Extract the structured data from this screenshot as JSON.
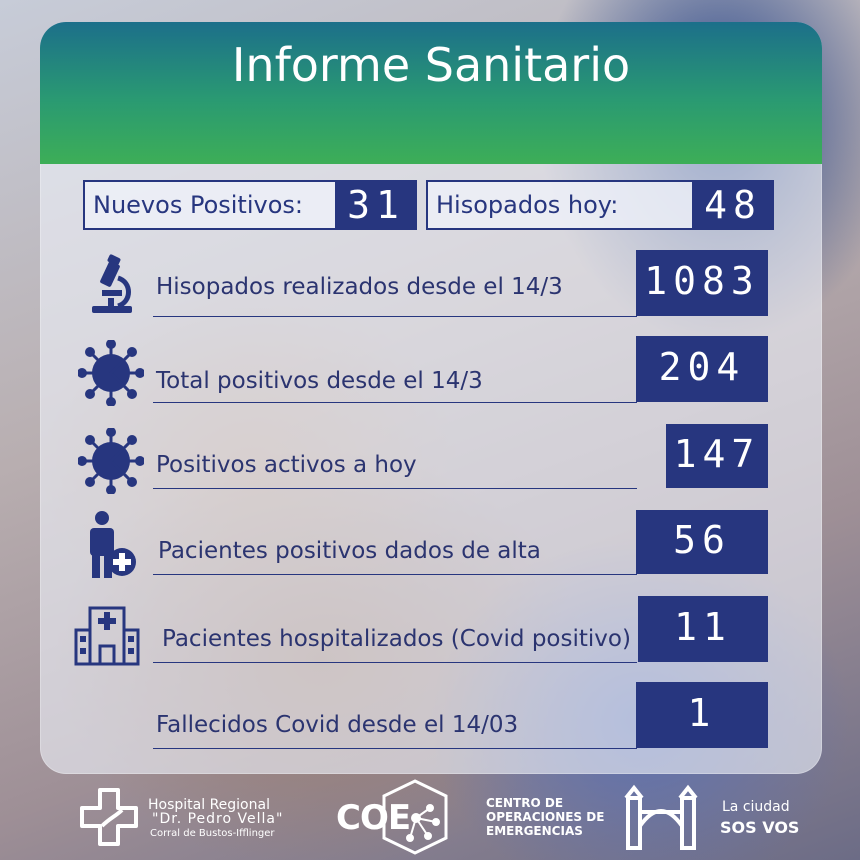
{
  "title": "Informe Sanitario",
  "summary": {
    "new_positives": {
      "label": "Nuevos Positivos:",
      "value": "31"
    },
    "swabs_today": {
      "label": "Hisopados hoy:",
      "value": "48"
    }
  },
  "stats": [
    {
      "icon": "microscope-icon",
      "label": "Hisopados realizados desde el 14/3",
      "value": "1083"
    },
    {
      "icon": "virus-icon",
      "label": "Total positivos desde el 14/3",
      "value": "204"
    },
    {
      "icon": "virus-icon",
      "label": "Positivos activos a hoy",
      "value": "147"
    },
    {
      "icon": "patient-discharge-icon",
      "label": "Pacientes positivos dados de alta",
      "value": "56"
    },
    {
      "icon": "hospital-icon",
      "label": "Pacientes hospitalizados (Covid positivo)",
      "value": "11"
    },
    {
      "icon": "",
      "label": "Fallecidos Covid desde el 14/03",
      "value": "1"
    }
  ],
  "footer": {
    "hospital": {
      "line1": "Hospital Regional",
      "line2": "\"Dr. Pedro Vella\"",
      "line3": "Corral de Bustos-Ifflinger"
    },
    "coe": {
      "logo_text": "COE",
      "line1": "CENTRO DE",
      "line2": "OPERACIONES DE",
      "line3": "EMERGENCIAS"
    },
    "city": {
      "line1": "La ciudad",
      "line2": "SOS VOS"
    }
  },
  "colors": {
    "navy": "#27367f",
    "header_green": "#3dae57",
    "header_teal": "#1c6f8a"
  }
}
